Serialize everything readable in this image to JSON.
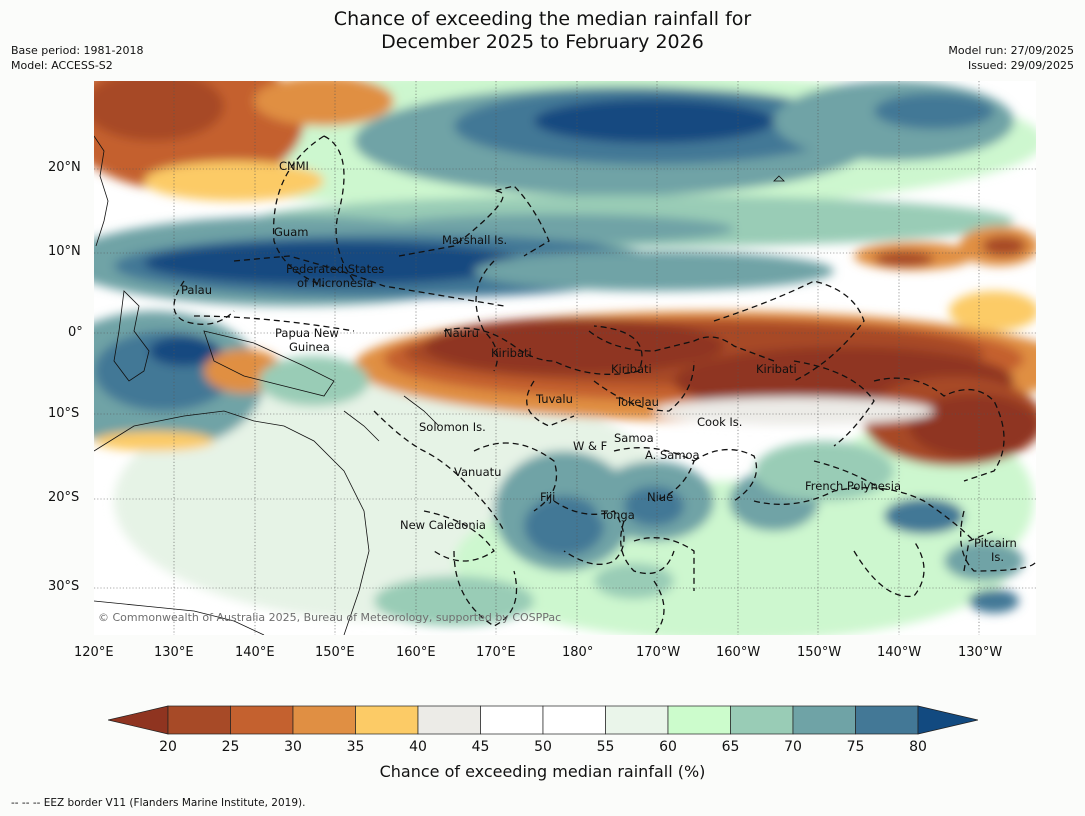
{
  "title_line1": "Chance of exceeding the median rainfall for",
  "title_line2": "December 2025 to February 2026",
  "base_period": "Base period: 1981-2018",
  "model": "Model: ACCESS-S2",
  "model_run": "Model run: 27/09/2025",
  "issued": "Issued: 29/09/2025",
  "lat_labels": [
    "20°N",
    "10°N",
    "0°",
    "10°S",
    "20°S",
    "30°S"
  ],
  "lon_labels": [
    "120°E",
    "130°E",
    "140°E",
    "150°E",
    "160°E",
    "170°E",
    "180°",
    "170°W",
    "160°W",
    "150°W",
    "140°W",
    "130°W"
  ],
  "regions": [
    "CNMI",
    "Guam",
    "Marshall Is.",
    "Federated States",
    "of Micronesia",
    "Palau",
    "Papua New",
    "Guinea",
    "Nauru",
    "Kiribati",
    "Kiribati",
    "Kiribati",
    "Tuvalu",
    "Tokelau",
    "Solomon Is.",
    "Cook Is.",
    "Samoa",
    "W & F",
    "A. Samoa",
    "Vanuatu",
    "Fiji",
    "Niue",
    "French Polynesia",
    "Tonga",
    "New Caledonia",
    "Pitcairn",
    "Is."
  ],
  "copyright": "© Commonwealth of Australia 2025, Bureau of Meteorology, supported by COSPPac",
  "colorbar": {
    "ticks": [
      "20",
      "25",
      "30",
      "35",
      "40",
      "45",
      "50",
      "55",
      "60",
      "65",
      "70",
      "75",
      "80"
    ],
    "colors": [
      "#a74a27",
      "#c4612f",
      "#e08f43",
      "#fccb66",
      "#ecebe7",
      "#ffffff",
      "#ffffff",
      "#eaf5ea",
      "#ccfccc",
      "#99ccb6",
      "#6fa3a6",
      "#437896"
    ],
    "low_color": "#8f3420",
    "high_color": "#124a80",
    "title": "Chance of exceeding median rainfall (%)"
  },
  "footnote": "--  --  -- EEZ border V11 (Flanders Marine Institute, 2019)."
}
